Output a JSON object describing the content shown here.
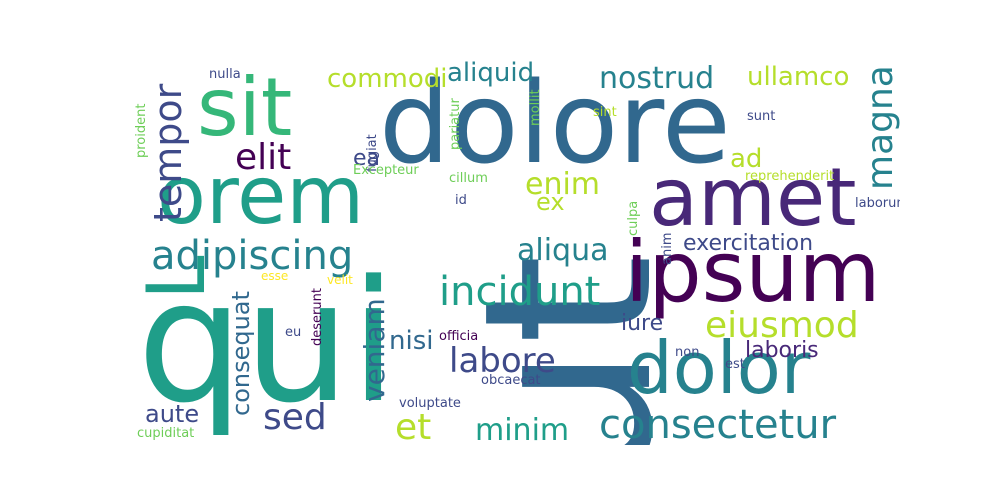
{
  "words": {
    "ut": "ut",
    "qui": "qui",
    "dolore": "dolore",
    "lorem": "Lorem",
    "sit": "sit",
    "amet": "amet",
    "ipsum": "ipsum",
    "dolor": "dolor",
    "consectetur": "consectetur",
    "adipiscing": "adipiscing",
    "tempor": "tempor",
    "elit": "elit",
    "incidunt": "incidunt",
    "eiusmod": "eiusmod",
    "labore": "labore",
    "magna": "magna",
    "nostrud": "nostrud",
    "aliquid": "aliquid",
    "commodi": "commodi",
    "ullamco": "ullamco",
    "enim": "enim",
    "ad": "ad",
    "ex": "ex",
    "ea": "ea",
    "aliqua": "aliqua",
    "exercitation": "exercitation",
    "veniam": "veniam",
    "consequat": "consequat",
    "sed": "sed",
    "et": "et",
    "minim": "minim",
    "nisi": "nisi",
    "iure": "iure",
    "laboris": "laboris",
    "aute": "aute",
    "nulla": "nulla",
    "proident": "proident",
    "fugiat": "fugiat",
    "pariatur": "pariatur",
    "mollit": "mollit",
    "sint": "sint",
    "sunt": "sunt",
    "excepteur": "Excepteur",
    "cillum": "cillum",
    "reprehenderit": "reprehenderit",
    "id": "id",
    "laborum": "laborum",
    "culpa": "culpa",
    "anim": "anim",
    "esse": "esse",
    "velit": "velit",
    "deserunt": "deserunt",
    "eu": "eu",
    "officia": "officia",
    "non": "non",
    "est": "est",
    "obcaecat": "obcaecat",
    "voluptate": "voluptate",
    "cupiditat": "cupiditat"
  },
  "palette": {
    "background": "#ffffff",
    "dark_purple": "#440154",
    "indigo": "#482878",
    "slate_blue": "#3e4a89",
    "teal_blue": "#31688e",
    "teal": "#26828e",
    "green_teal": "#1f9e89",
    "green": "#35b779",
    "light_green": "#6ece58",
    "lime": "#b5de2b",
    "yellow": "#fde725"
  }
}
